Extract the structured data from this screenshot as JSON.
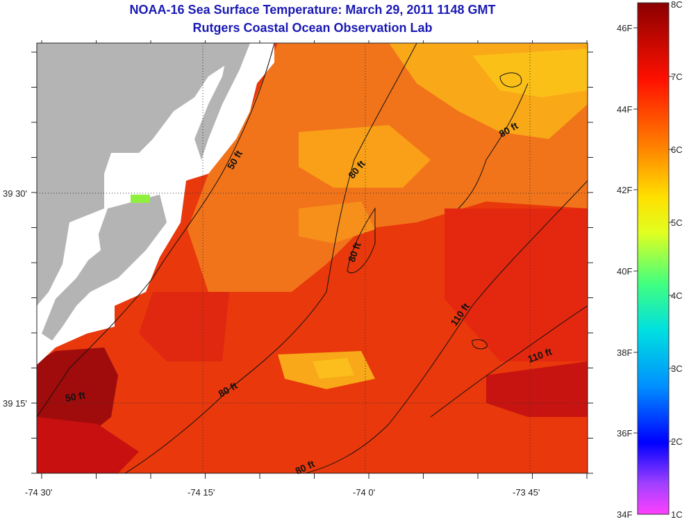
{
  "title": "NOAA-16 Sea Surface Temperature:  March 29, 2011 1148 GMT",
  "subtitle": "Rutgers Coastal Ocean Observation Lab",
  "axes": {
    "x_ticks": [
      "-74 30'",
      "-74 15'",
      "-74 0'",
      "-73 45'"
    ],
    "y_ticks": [
      "39 30'",
      "39 15'"
    ]
  },
  "depth_contours": [
    "50 ft",
    "50 ft",
    "80 ft",
    "80 ft",
    "80 ft",
    "80 ft",
    "80 ft",
    "110 ft",
    "110 ft"
  ],
  "colorbar": {
    "celsius": [
      "8C",
      "7C",
      "6C",
      "5C",
      "4C",
      "3C",
      "2C",
      "1C"
    ],
    "fahrenheit": [
      "46F",
      "44F",
      "42F",
      "40F",
      "38F",
      "36F",
      "34F"
    ],
    "range_c": [
      1,
      8
    ]
  },
  "colors": {
    "land": "#b4b4b4",
    "title": "#1a1ab4",
    "warm_dark": "#9a0a0a",
    "warm_red": "#e02010",
    "orange": "#f07010",
    "yellow": "#ffd000"
  }
}
